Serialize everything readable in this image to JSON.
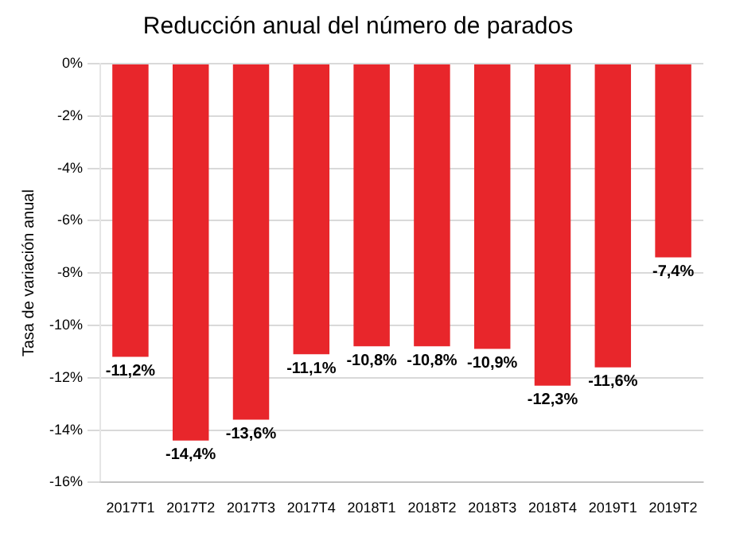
{
  "chart_data": {
    "type": "bar",
    "title": "Reducción anual del número de parados",
    "ylabel": "Tasa de variación anual",
    "categories": [
      "2017T1",
      "2017T2",
      "2017T3",
      "2017T4",
      "2018T1",
      "2018T2",
      "2018T3",
      "2018T4",
      "2019T1",
      "2019T2"
    ],
    "values": [
      -11.2,
      -14.4,
      -13.6,
      -11.1,
      -10.8,
      -10.8,
      -10.9,
      -12.3,
      -11.6,
      -7.4
    ],
    "value_labels": [
      "-11,2%",
      "-14,4%",
      "-13,6%",
      "-11,1%",
      "-10,8%",
      "-10,8%",
      "-10,9%",
      "-12,3%",
      "-11,6%",
      "-7,4%"
    ],
    "color": "#e8262b",
    "ylim": [
      -16,
      0
    ],
    "yticks": [
      {
        "value": 0,
        "label": "0%"
      },
      {
        "value": -2,
        "label": "-2%"
      },
      {
        "value": -4,
        "label": "-4%"
      },
      {
        "value": -6,
        "label": "-6%"
      },
      {
        "value": -8,
        "label": "-8%"
      },
      {
        "value": -10,
        "label": "-10%"
      },
      {
        "value": -12,
        "label": "-12%"
      },
      {
        "value": -14,
        "label": "-14%"
      },
      {
        "value": -16,
        "label": "-16%"
      }
    ],
    "grid": "y"
  }
}
